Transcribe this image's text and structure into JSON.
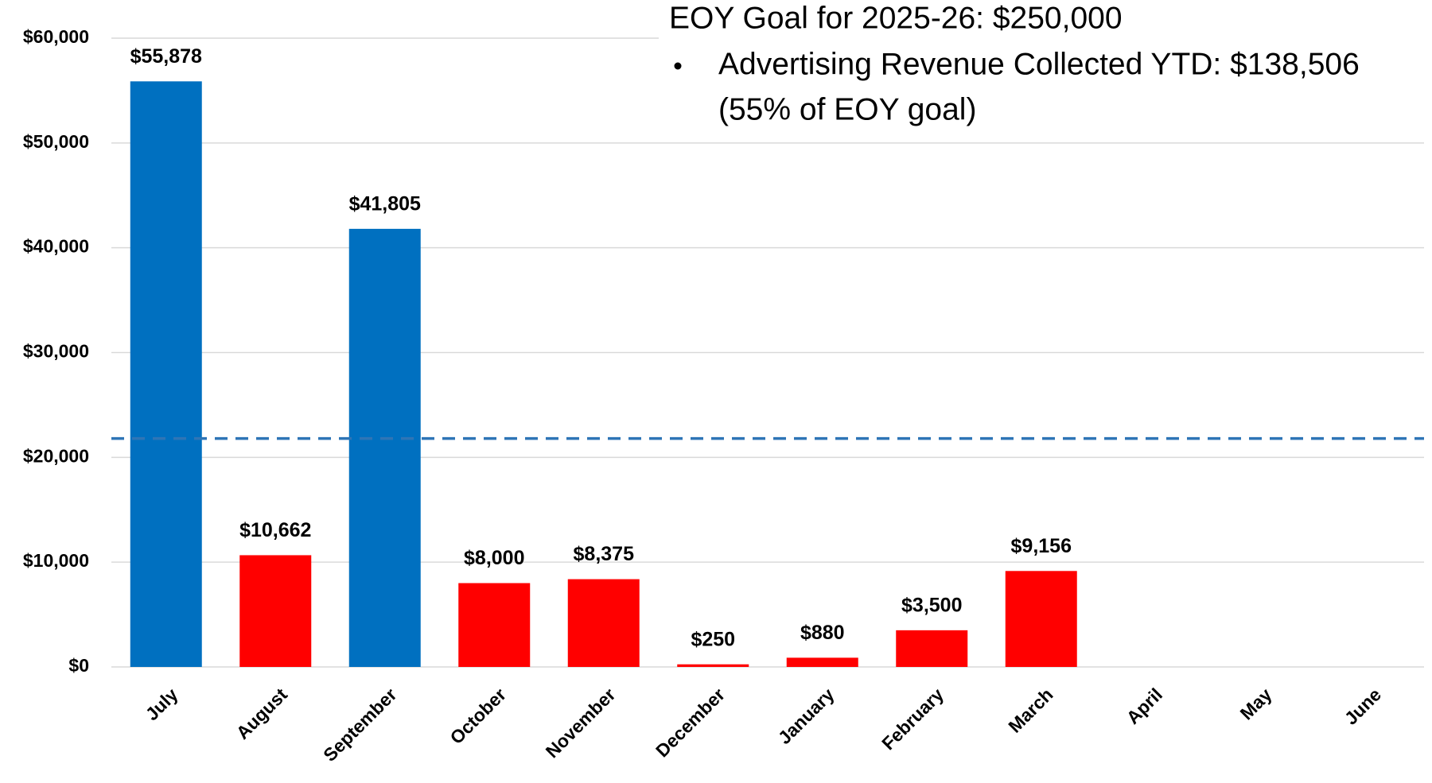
{
  "chart_data": {
    "type": "bar",
    "categories": [
      "July",
      "August",
      "September",
      "October",
      "November",
      "December",
      "January",
      "February",
      "March",
      "April",
      "May",
      "June"
    ],
    "values": [
      55878,
      10662,
      41805,
      8000,
      8375,
      250,
      880,
      3500,
      9156,
      null,
      null,
      null
    ],
    "value_labels": [
      "$55,878",
      "$10,662",
      "$41,805",
      "$8,000",
      "$8,375",
      "$250",
      "$880",
      "$3,500",
      "$9,156",
      null,
      null,
      null
    ],
    "colors": [
      "#0070c0",
      "#ff0000",
      "#0070c0",
      "#ff0000",
      "#ff0000",
      "#ff0000",
      "#ff0000",
      "#ff0000",
      "#ff0000",
      "#ff0000",
      "#ff0000",
      "#ff0000"
    ],
    "ylim": [
      0,
      60000
    ],
    "yticks": [
      {
        "value": 0,
        "label": "$0"
      },
      {
        "value": 10000,
        "label": "$10,000"
      },
      {
        "value": 20000,
        "label": "$20,000"
      },
      {
        "value": 30000,
        "label": "$30,000"
      },
      {
        "value": 40000,
        "label": "$40,000"
      },
      {
        "value": 50000,
        "label": "$50,000"
      },
      {
        "value": 60000,
        "label": "$60,000"
      }
    ],
    "grid": true,
    "reference_line": {
      "value": 21800,
      "color": "#2e75b6",
      "dashed": true
    },
    "annotations": [
      "EOY Goal for 2025-26:  $250,000",
      "Advertising Revenue Collected YTD: $138,506",
      "(55% of EOY goal)"
    ]
  }
}
